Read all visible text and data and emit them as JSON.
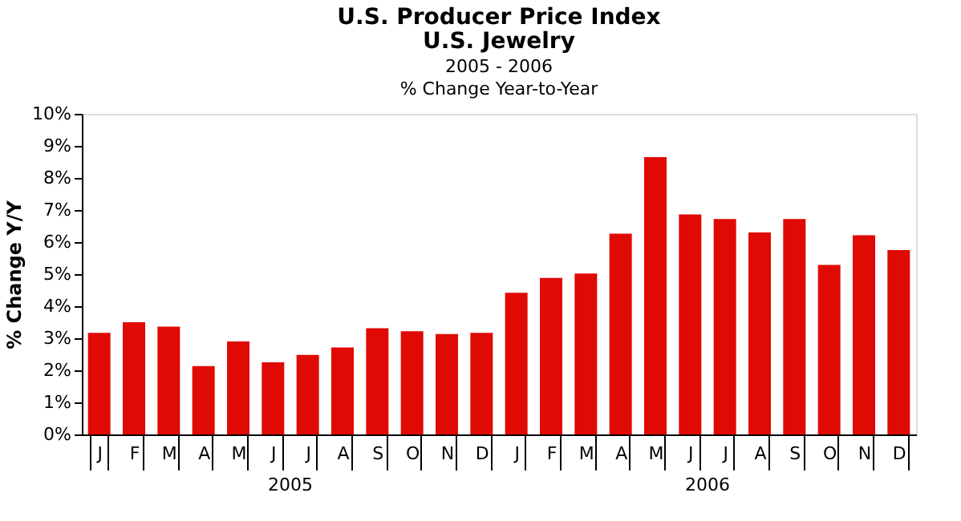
{
  "chart_data": {
    "type": "bar",
    "title": [
      "U.S. Producer Price Index",
      "U.S. Jewelry"
    ],
    "subtitle": [
      "2005 - 2006",
      "% Change Year-to-Year"
    ],
    "ylabel": "% Change Y/Y",
    "categories": [
      "J",
      "F",
      "M",
      "A",
      "M",
      "J",
      "J",
      "A",
      "S",
      "O",
      "N",
      "D",
      "J",
      "F",
      "M",
      "A",
      "M",
      "J",
      "J",
      "A",
      "S",
      "O",
      "N",
      "D"
    ],
    "values": [
      3.17,
      3.5,
      3.36,
      2.13,
      2.9,
      2.25,
      2.48,
      2.71,
      3.31,
      3.22,
      3.13,
      3.17,
      4.42,
      4.88,
      5.02,
      6.26,
      8.65,
      6.86,
      6.72,
      6.3,
      6.72,
      5.29,
      6.21,
      5.75
    ],
    "color": "#e00a05",
    "ylim": [
      0,
      10
    ],
    "yticks": [
      {
        "value": 0,
        "label": "0%"
      },
      {
        "value": 1,
        "label": "1%"
      },
      {
        "value": 2,
        "label": "2%"
      },
      {
        "value": 3,
        "label": "3%"
      },
      {
        "value": 4,
        "label": "4%"
      },
      {
        "value": 5,
        "label": "5%"
      },
      {
        "value": 6,
        "label": "6%"
      },
      {
        "value": 7,
        "label": "7%"
      },
      {
        "value": 8,
        "label": "8%"
      },
      {
        "value": 9,
        "label": "9%"
      },
      {
        "value": 10,
        "label": "10%"
      }
    ],
    "annotations": [
      "2005",
      "2006"
    ],
    "grid": false
  }
}
